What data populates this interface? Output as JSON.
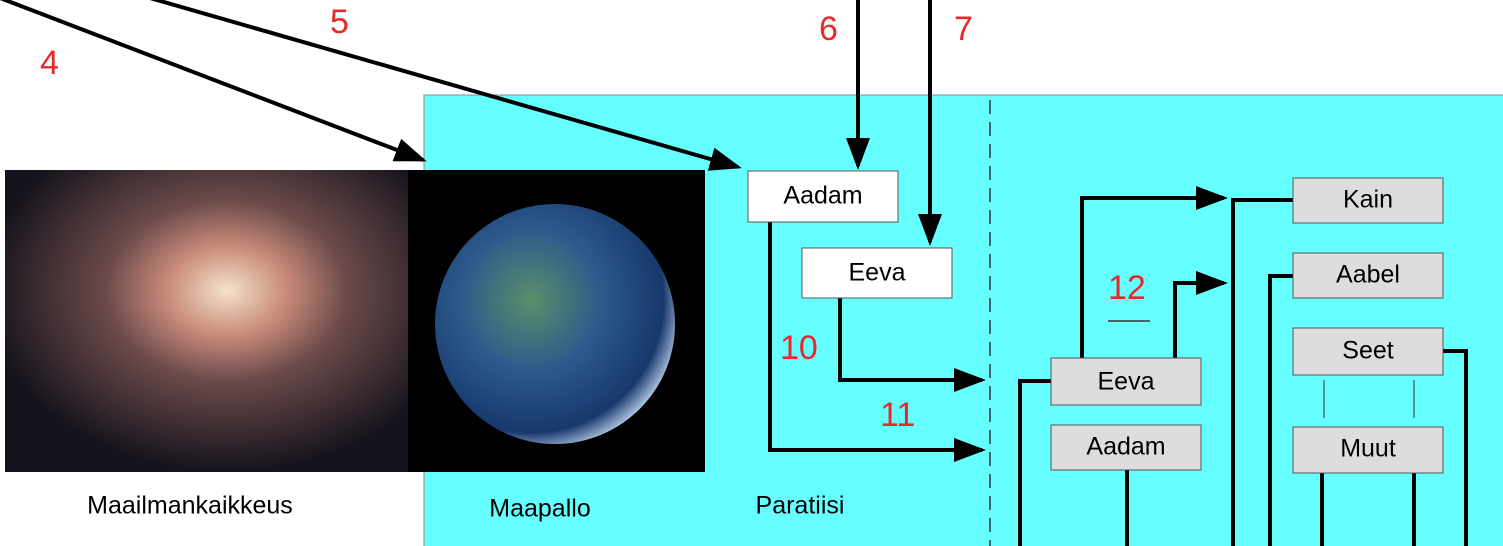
{
  "annotations": [
    "4",
    "5",
    "6",
    "7",
    "10",
    "11",
    "12"
  ],
  "nodes": [
    {
      "label": "Aadam"
    },
    {
      "label": "Eeva"
    },
    {
      "label": "Eeva"
    },
    {
      "label": "Aadam"
    },
    {
      "label": "Kain"
    },
    {
      "label": "Aabel"
    },
    {
      "label": "Seet"
    },
    {
      "label": "Muut"
    }
  ],
  "captions": [
    "Maailmankaikkeus",
    "Maapallo",
    "Paratiisi"
  ]
}
